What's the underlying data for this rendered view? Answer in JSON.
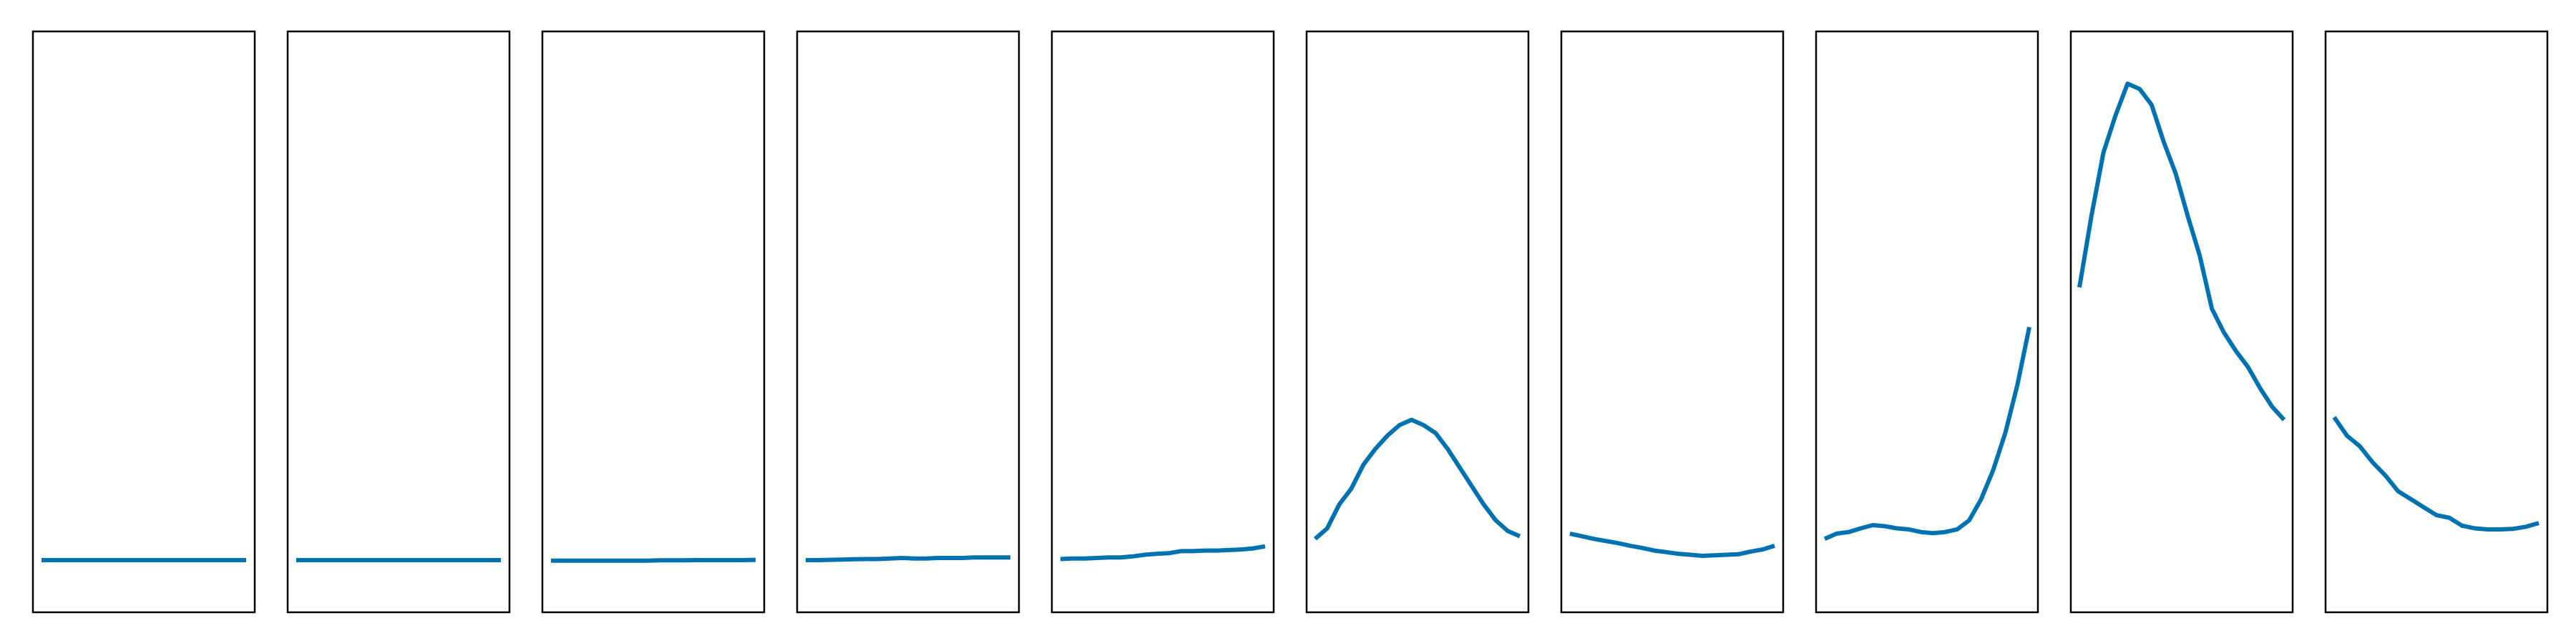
{
  "chart_data": [
    {
      "type": "line",
      "color": "#0072B2",
      "y_range": [
        0,
        1
      ],
      "grid": false,
      "y": [
        0.05,
        0.05,
        0.05,
        0.05,
        0.05,
        0.05,
        0.05,
        0.05,
        0.05,
        0.05,
        0.05,
        0.05,
        0.05,
        0.05,
        0.05,
        0.05,
        0.05,
        0.05
      ]
    },
    {
      "type": "line",
      "color": "#0072B2",
      "y_range": [
        0,
        1
      ],
      "grid": false,
      "y": [
        0.05,
        0.05,
        0.05,
        0.05,
        0.05,
        0.05,
        0.05,
        0.05,
        0.05,
        0.05,
        0.05,
        0.05,
        0.05,
        0.05,
        0.05,
        0.05,
        0.05,
        0.05
      ]
    },
    {
      "type": "line",
      "color": "#0072B2",
      "y_range": [
        0,
        1
      ],
      "grid": false,
      "y": [
        0.049,
        0.049,
        0.049,
        0.049,
        0.049,
        0.049,
        0.049,
        0.049,
        0.049,
        0.0495,
        0.0495,
        0.0495,
        0.05,
        0.05,
        0.05,
        0.05,
        0.05,
        0.0505
      ]
    },
    {
      "type": "line",
      "color": "#0072B2",
      "y_range": [
        0,
        1
      ],
      "grid": false,
      "y": [
        0.05,
        0.05,
        0.0505,
        0.051,
        0.0515,
        0.052,
        0.052,
        0.053,
        0.054,
        0.053,
        0.053,
        0.054,
        0.054,
        0.054,
        0.055,
        0.055,
        0.055,
        0.055
      ]
    },
    {
      "type": "line",
      "color": "#0072B2",
      "y_range": [
        0,
        1
      ],
      "grid": false,
      "y": [
        0.052,
        0.053,
        0.053,
        0.054,
        0.055,
        0.055,
        0.057,
        0.06,
        0.062,
        0.063,
        0.067,
        0.067,
        0.068,
        0.068,
        0.069,
        0.07,
        0.072,
        0.076
      ]
    },
    {
      "type": "line",
      "color": "#0072B2",
      "y_range": [
        0,
        1
      ],
      "grid": false,
      "y": [
        0.09,
        0.11,
        0.155,
        0.185,
        0.23,
        0.26,
        0.285,
        0.305,
        0.315,
        0.305,
        0.29,
        0.26,
        0.225,
        0.19,
        0.155,
        0.125,
        0.105,
        0.095
      ]
    },
    {
      "type": "line",
      "color": "#0072B2",
      "y_range": [
        0,
        1
      ],
      "grid": false,
      "y": [
        0.1,
        0.095,
        0.09,
        0.086,
        0.082,
        0.077,
        0.073,
        0.068,
        0.065,
        0.062,
        0.06,
        0.058,
        0.059,
        0.06,
        0.061,
        0.066,
        0.07,
        0.077
      ]
    },
    {
      "type": "line",
      "color": "#0072B2",
      "y_range": [
        0,
        1
      ],
      "grid": false,
      "y": [
        0.09,
        0.1,
        0.103,
        0.11,
        0.116,
        0.114,
        0.11,
        0.108,
        0.103,
        0.101,
        0.103,
        0.108,
        0.125,
        0.165,
        0.22,
        0.29,
        0.38,
        0.49
      ]
    },
    {
      "type": "line",
      "color": "#0072B2",
      "y_range": [
        0,
        1
      ],
      "grid": false,
      "y": [
        0.565,
        0.7,
        0.82,
        0.89,
        0.95,
        0.94,
        0.91,
        0.84,
        0.78,
        0.7,
        0.625,
        0.525,
        0.48,
        0.445,
        0.415,
        0.375,
        0.34,
        0.315
      ]
    },
    {
      "type": "line",
      "color": "#0072B2",
      "y_range": [
        0,
        1
      ],
      "grid": false,
      "y": [
        0.32,
        0.285,
        0.265,
        0.235,
        0.21,
        0.18,
        0.165,
        0.15,
        0.135,
        0.13,
        0.115,
        0.11,
        0.108,
        0.108,
        0.109,
        0.113,
        0.12
      ]
    }
  ]
}
